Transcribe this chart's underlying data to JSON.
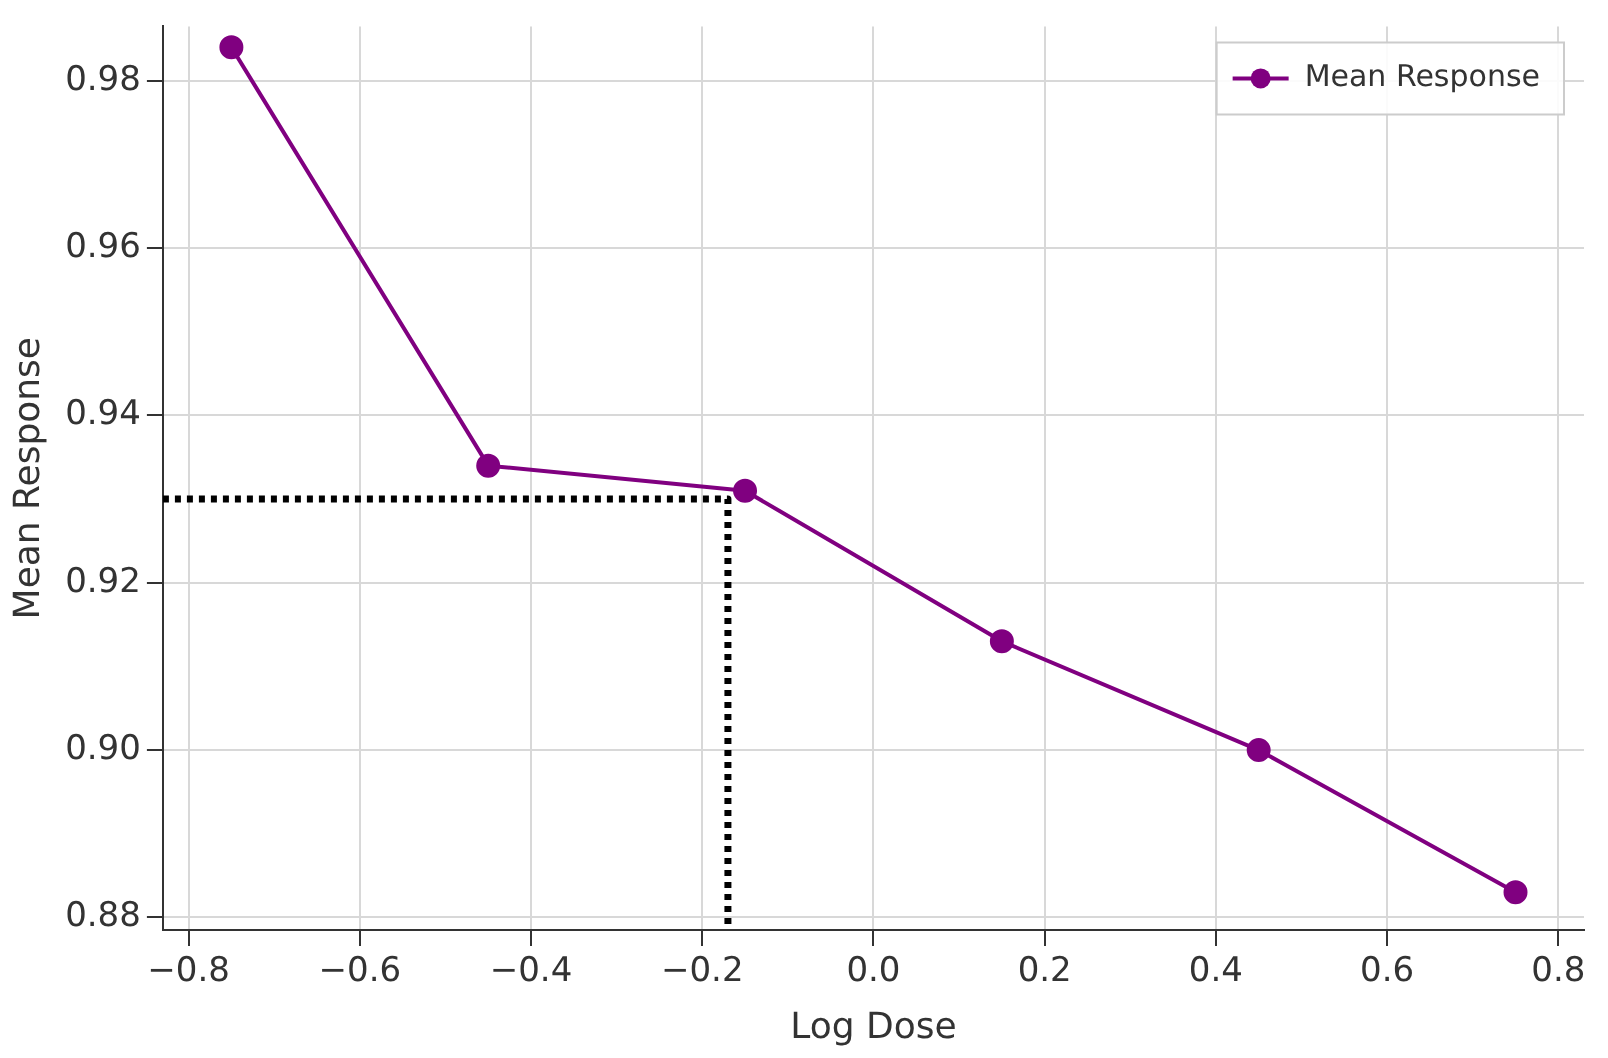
{
  "chart_data": {
    "type": "line",
    "xlabel": "Log Dose",
    "ylabel": "Mean Response",
    "xlim": [
      -0.83,
      0.83
    ],
    "xticks": [
      {
        "value": -0.8,
        "label": "−0.8"
      },
      {
        "value": -0.6,
        "label": "−0.6"
      },
      {
        "value": -0.4,
        "label": "−0.4"
      },
      {
        "value": -0.2,
        "label": "−0.2"
      },
      {
        "value": 0,
        "label": "0.0"
      },
      0.2,
      0.4,
      0.6,
      0.8
    ],
    "ylim": [
      0.8785,
      0.9865
    ],
    "yticks": [
      0.88,
      {
        "value": 0.9,
        "label": "0.90"
      },
      0.92,
      0.94,
      0.96,
      0.98
    ],
    "grid": true,
    "legend": "top right",
    "marker": "circle",
    "series": [
      {
        "name": "Mean Response",
        "color": "#800080",
        "x": [
          -0.75,
          -0.45,
          -0.15,
          0.15,
          0.45,
          0.75
        ],
        "values": [
          0.984,
          0.934,
          0.931,
          0.913,
          0.9,
          0.883
        ]
      },
      {
        "color": "#000000",
        "x": [
          -0.83,
          -0.17,
          -0.17
        ],
        "values": [
          0.93,
          0.93,
          0.8785
        ],
        "marker": "none",
        "line_style": "dotted"
      }
    ]
  }
}
